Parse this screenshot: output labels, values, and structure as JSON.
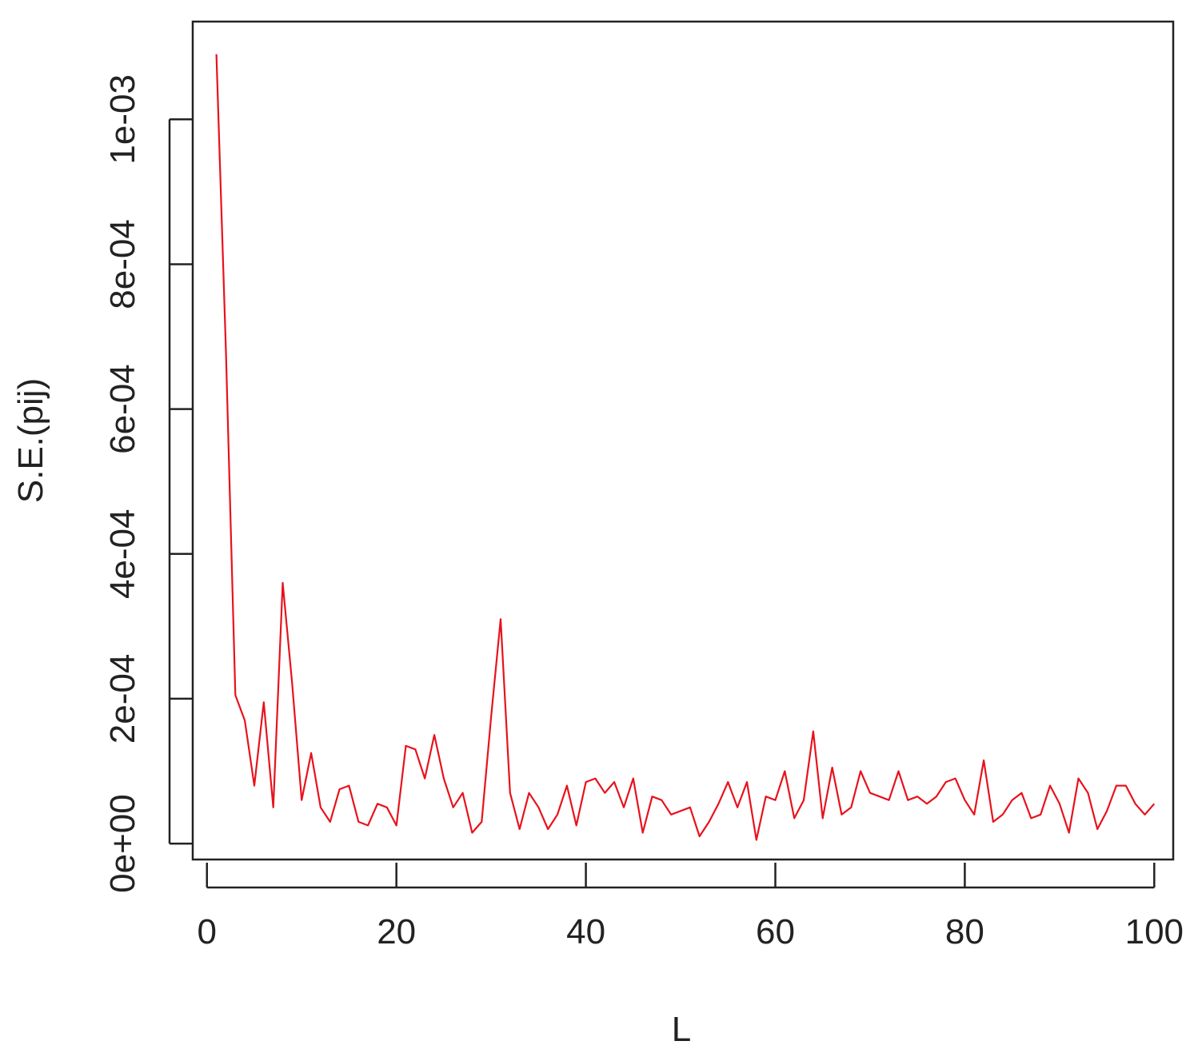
{
  "chart_data": {
    "type": "line",
    "title": "",
    "xlabel": "L",
    "ylabel": "S.E.(pij)",
    "xlim": [
      -1.5,
      102
    ],
    "ylim": [
      -2.2e-05,
      0.001135
    ],
    "x_ticks": [
      0,
      20,
      40,
      60,
      80,
      100
    ],
    "x_tick_labels": [
      "0",
      "20",
      "40",
      "60",
      "80",
      "100"
    ],
    "y_ticks": [
      0,
      0.0002,
      0.0004,
      0.0006,
      0.0008,
      0.001
    ],
    "y_tick_labels": [
      "0e+00",
      "2e-04",
      "4e-04",
      "6e-04",
      "8e-04",
      "1e-03"
    ],
    "grid": false,
    "series": [
      {
        "color": "#e8121c",
        "x": [
          1,
          2,
          3,
          4,
          5,
          6,
          7,
          8,
          9,
          10,
          11,
          12,
          13,
          14,
          15,
          16,
          17,
          18,
          19,
          20,
          21,
          22,
          23,
          24,
          25,
          26,
          27,
          28,
          29,
          30,
          31,
          32,
          33,
          34,
          35,
          36,
          37,
          38,
          39,
          40,
          41,
          42,
          43,
          44,
          45,
          46,
          47,
          48,
          49,
          50,
          51,
          52,
          53,
          54,
          55,
          56,
          57,
          58,
          59,
          60,
          61,
          62,
          63,
          64,
          65,
          66,
          67,
          68,
          69,
          70,
          71,
          72,
          73,
          74,
          75,
          76,
          77,
          78,
          79,
          80,
          81,
          82,
          83,
          84,
          85,
          86,
          87,
          88,
          89,
          90,
          91,
          92,
          93,
          94,
          95,
          96,
          97,
          98,
          99,
          100
        ],
        "values": [
          0.00109,
          0.00068,
          0.000205,
          0.00017,
          8e-05,
          0.000195,
          5e-05,
          0.00036,
          0.00022,
          6e-05,
          0.000125,
          5e-05,
          3e-05,
          7.5e-05,
          8e-05,
          3e-05,
          2.5e-05,
          5.5e-05,
          5e-05,
          2.5e-05,
          0.000135,
          0.00013,
          9e-05,
          0.00015,
          9e-05,
          5e-05,
          7e-05,
          1.5e-05,
          3e-05,
          0.000175,
          0.00031,
          7e-05,
          2e-05,
          7e-05,
          5e-05,
          2e-05,
          4e-05,
          8e-05,
          2.5e-05,
          8.5e-05,
          9e-05,
          7e-05,
          8.5e-05,
          5e-05,
          9e-05,
          1.5e-05,
          6.5e-05,
          6e-05,
          4e-05,
          4.5e-05,
          5e-05,
          1e-05,
          3e-05,
          5.5e-05,
          8.5e-05,
          5e-05,
          8.5e-05,
          5e-06,
          6.5e-05,
          6e-05,
          0.0001,
          3.5e-05,
          6e-05,
          0.000155,
          3.5e-05,
          0.000105,
          4e-05,
          5e-05,
          0.0001,
          7e-05,
          6.5e-05,
          6e-05,
          0.0001,
          6e-05,
          6.5e-05,
          5.5e-05,
          6.5e-05,
          8.5e-05,
          9e-05,
          6e-05,
          4e-05,
          0.000115,
          3e-05,
          4e-05,
          6e-05,
          7e-05,
          3.5e-05,
          4e-05,
          8e-05,
          5.5e-05,
          1.5e-05,
          9e-05,
          7e-05,
          2e-05,
          4.5e-05,
          8e-05,
          8e-05,
          5.5e-05,
          4e-05,
          5.5e-05
        ]
      }
    ]
  }
}
